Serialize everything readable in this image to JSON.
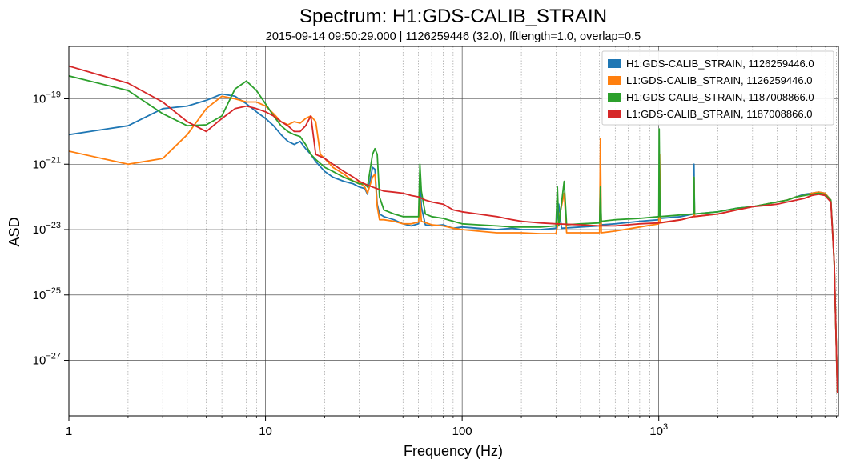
{
  "chart_data": {
    "type": "line",
    "title": "Spectrum: H1:GDS-CALIB_STRAIN",
    "subtitle": "2015-09-14 09:50:29.000 | 1126259446 (32.0), fftlength=1.0, overlap=0.5",
    "xlabel": "Frequency (Hz)",
    "ylabel": "ASD",
    "xscale": "log",
    "yscale": "log",
    "xlim": [
      1,
      8192
    ],
    "ylim": [
      2e-29,
      4e-18
    ],
    "grid": "major and minor (x), major (y)",
    "legend_position": "top-right",
    "x_ticks": [
      {
        "value": 1,
        "label": "1",
        "base": "",
        "exp": ""
      },
      {
        "value": 10,
        "label": "10",
        "base": "",
        "exp": ""
      },
      {
        "value": 100,
        "label": "100",
        "base": "",
        "exp": ""
      },
      {
        "value": 1000,
        "label": "",
        "base": "10",
        "exp": "3"
      }
    ],
    "y_ticks": [
      {
        "value": 1e-19,
        "base": "10",
        "exp": "−19"
      },
      {
        "value": 1e-21,
        "base": "10",
        "exp": "−21"
      },
      {
        "value": 1e-23,
        "base": "10",
        "exp": "−23"
      },
      {
        "value": 1e-25,
        "base": "10",
        "exp": "−25"
      },
      {
        "value": 1e-27,
        "base": "10",
        "exp": "−27"
      }
    ],
    "series": [
      {
        "name": "H1:GDS-CALIB_STRAIN, 1126259446.0",
        "color": "#1f77b4",
        "points": [
          [
            1,
            8e-21
          ],
          [
            2,
            1.5e-20
          ],
          [
            3,
            5e-20
          ],
          [
            4,
            6e-20
          ],
          [
            5,
            9e-20
          ],
          [
            6,
            1.4e-19
          ],
          [
            7,
            1.2e-19
          ],
          [
            8,
            7e-20
          ],
          [
            9,
            4e-20
          ],
          [
            10,
            2.5e-20
          ],
          [
            11,
            1.5e-20
          ],
          [
            12,
            8e-21
          ],
          [
            13,
            5e-21
          ],
          [
            14,
            4e-21
          ],
          [
            15,
            5e-21
          ],
          [
            16,
            3e-21
          ],
          [
            17,
            2e-21
          ],
          [
            18,
            1.2e-21
          ],
          [
            20,
            6e-22
          ],
          [
            22,
            4e-22
          ],
          [
            25,
            3e-22
          ],
          [
            28,
            2.5e-22
          ],
          [
            30,
            2e-22
          ],
          [
            32,
            1.8e-22
          ],
          [
            33,
            1.2e-22
          ],
          [
            35,
            8e-22
          ],
          [
            36,
            7e-22
          ],
          [
            37,
            6e-23
          ],
          [
            38,
            3e-23
          ],
          [
            40,
            2.5e-23
          ],
          [
            45,
            2e-23
          ],
          [
            50,
            1.5e-23
          ],
          [
            55,
            1.3e-23
          ],
          [
            60,
            1.5e-23
          ],
          [
            61,
            4e-22
          ],
          [
            62,
            5e-23
          ],
          [
            65,
            1.4e-23
          ],
          [
            70,
            1.3e-23
          ],
          [
            80,
            1.4e-23
          ],
          [
            90,
            1.1e-23
          ],
          [
            100,
            1.2e-23
          ],
          [
            120,
            1.1e-23
          ],
          [
            150,
            1e-23
          ],
          [
            180,
            1.1e-23
          ],
          [
            200,
            1e-23
          ],
          [
            250,
            1e-23
          ],
          [
            300,
            1.1e-23
          ],
          [
            310,
            6e-23
          ],
          [
            320,
            1.1e-23
          ],
          [
            400,
            1.2e-23
          ],
          [
            500,
            1.3e-23
          ],
          [
            505,
            4e-22
          ],
          [
            510,
            1.4e-23
          ],
          [
            600,
            1.5e-23
          ],
          [
            800,
            1.8e-23
          ],
          [
            1000,
            2e-23
          ],
          [
            1010,
            4e-22
          ],
          [
            1020,
            2.2e-23
          ],
          [
            1300,
            2.5e-23
          ],
          [
            1500,
            3e-23
          ],
          [
            1510,
            1e-21
          ],
          [
            1520,
            3e-23
          ],
          [
            2000,
            3.5e-23
          ],
          [
            2500,
            4.5e-23
          ],
          [
            3000,
            5e-23
          ],
          [
            3500,
            6e-23
          ],
          [
            4000,
            7e-23
          ],
          [
            4500,
            8e-23
          ],
          [
            5000,
            1e-22
          ],
          [
            5500,
            1.2e-22
          ],
          [
            6000,
            1.3e-22
          ],
          [
            6500,
            1.4e-22
          ],
          [
            7000,
            1.3e-22
          ],
          [
            7500,
            8e-23
          ],
          [
            7800,
            1e-24
          ],
          [
            8100,
            1e-28
          ]
        ]
      },
      {
        "name": "L1:GDS-CALIB_STRAIN, 1126259446.0",
        "color": "#ff7f0e",
        "points": [
          [
            1,
            2.5e-21
          ],
          [
            2,
            1e-21
          ],
          [
            3,
            1.5e-21
          ],
          [
            4,
            8e-21
          ],
          [
            5,
            5e-20
          ],
          [
            6,
            1.2e-19
          ],
          [
            7,
            1e-19
          ],
          [
            8,
            8e-20
          ],
          [
            9,
            8e-20
          ],
          [
            10,
            6e-20
          ],
          [
            11,
            3.5e-20
          ],
          [
            12,
            2e-20
          ],
          [
            13,
            1.6e-20
          ],
          [
            14,
            2e-20
          ],
          [
            15,
            1.8e-20
          ],
          [
            16,
            2.5e-20
          ],
          [
            17,
            3e-20
          ],
          [
            18,
            2e-20
          ],
          [
            19,
            2e-21
          ],
          [
            20,
            1.5e-21
          ],
          [
            22,
            8e-22
          ],
          [
            25,
            5e-22
          ],
          [
            28,
            3e-22
          ],
          [
            30,
            2.8e-22
          ],
          [
            32,
            2e-22
          ],
          [
            33,
            1.3e-22
          ],
          [
            35,
            4e-22
          ],
          [
            36,
            5e-22
          ],
          [
            37,
            5e-23
          ],
          [
            38,
            2e-23
          ],
          [
            40,
            2e-23
          ],
          [
            45,
            1.8e-23
          ],
          [
            50,
            1.5e-23
          ],
          [
            55,
            1.5e-23
          ],
          [
            60,
            1.7e-23
          ],
          [
            61,
            1e-22
          ],
          [
            62,
            1.8e-23
          ],
          [
            70,
            1.4e-23
          ],
          [
            80,
            1.3e-23
          ],
          [
            90,
            1.1e-23
          ],
          [
            100,
            1e-23
          ],
          [
            120,
            9e-24
          ],
          [
            150,
            8e-24
          ],
          [
            180,
            8e-24
          ],
          [
            200,
            8e-24
          ],
          [
            250,
            7.5e-24
          ],
          [
            300,
            7.5e-24
          ],
          [
            330,
            1.3e-22
          ],
          [
            340,
            8e-24
          ],
          [
            400,
            8e-24
          ],
          [
            500,
            8e-24
          ],
          [
            505,
            6e-21
          ],
          [
            510,
            8e-24
          ],
          [
            600,
            9e-24
          ],
          [
            800,
            1.2e-23
          ],
          [
            1000,
            1.5e-23
          ],
          [
            1010,
            2e-21
          ],
          [
            1020,
            1.6e-23
          ],
          [
            1300,
            2e-23
          ],
          [
            1500,
            2.5e-23
          ],
          [
            1510,
            4e-22
          ],
          [
            1520,
            2.5e-23
          ],
          [
            2000,
            3e-23
          ],
          [
            2500,
            4e-23
          ],
          [
            3000,
            5e-23
          ],
          [
            3500,
            6e-23
          ],
          [
            4000,
            7e-23
          ],
          [
            4500,
            8e-23
          ],
          [
            5000,
            1e-22
          ],
          [
            5500,
            1.1e-22
          ],
          [
            6000,
            1.3e-22
          ],
          [
            6500,
            1.4e-22
          ],
          [
            7000,
            1.3e-22
          ],
          [
            7500,
            8e-23
          ],
          [
            7800,
            1e-24
          ],
          [
            8100,
            1e-28
          ]
        ]
      },
      {
        "name": "H1:GDS-CALIB_STRAIN, 1187008866.0",
        "color": "#2ca02c",
        "points": [
          [
            1,
            5e-19
          ],
          [
            2,
            1.8e-19
          ],
          [
            3,
            3.5e-20
          ],
          [
            4,
            1.5e-20
          ],
          [
            5,
            1.6e-20
          ],
          [
            6,
            3e-20
          ],
          [
            7,
            2e-19
          ],
          [
            8,
            3.5e-19
          ],
          [
            9,
            1.8e-19
          ],
          [
            10,
            7e-20
          ],
          [
            11,
            3e-20
          ],
          [
            12,
            1.5e-20
          ],
          [
            13,
            1e-20
          ],
          [
            14,
            8e-21
          ],
          [
            15,
            7e-21
          ],
          [
            16,
            4e-21
          ],
          [
            17,
            2e-21
          ],
          [
            18,
            1.4e-21
          ],
          [
            20,
            8e-22
          ],
          [
            22,
            6e-22
          ],
          [
            25,
            4e-22
          ],
          [
            28,
            3e-22
          ],
          [
            30,
            2.5e-22
          ],
          [
            32,
            2.5e-22
          ],
          [
            33,
            2e-22
          ],
          [
            35,
            2e-21
          ],
          [
            36,
            3e-21
          ],
          [
            37,
            2e-21
          ],
          [
            38,
            1e-22
          ],
          [
            40,
            4e-23
          ],
          [
            45,
            3e-23
          ],
          [
            50,
            2.5e-23
          ],
          [
            55,
            2.5e-23
          ],
          [
            60,
            2.5e-23
          ],
          [
            61,
            1e-21
          ],
          [
            62,
            1.5e-22
          ],
          [
            65,
            3e-23
          ],
          [
            70,
            2.5e-23
          ],
          [
            80,
            2.2e-23
          ],
          [
            90,
            1.8e-23
          ],
          [
            100,
            1.5e-23
          ],
          [
            120,
            1.4e-23
          ],
          [
            150,
            1.3e-23
          ],
          [
            180,
            1.2e-23
          ],
          [
            200,
            1.2e-23
          ],
          [
            250,
            1.2e-23
          ],
          [
            300,
            1.3e-23
          ],
          [
            305,
            2e-22
          ],
          [
            310,
            1.3e-23
          ],
          [
            330,
            3e-22
          ],
          [
            340,
            1.4e-23
          ],
          [
            400,
            1.5e-23
          ],
          [
            500,
            1.6e-23
          ],
          [
            505,
            2e-22
          ],
          [
            510,
            1.8e-23
          ],
          [
            600,
            2e-23
          ],
          [
            800,
            2.2e-23
          ],
          [
            1000,
            2.5e-23
          ],
          [
            1005,
            1.2e-20
          ],
          [
            1015,
            2.5e-23
          ],
          [
            1300,
            2.8e-23
          ],
          [
            1500,
            3e-23
          ],
          [
            1510,
            4e-22
          ],
          [
            1520,
            3e-23
          ],
          [
            2000,
            3.5e-23
          ],
          [
            2500,
            4.5e-23
          ],
          [
            3000,
            5e-23
          ],
          [
            3500,
            6e-23
          ],
          [
            4000,
            7e-23
          ],
          [
            4500,
            8e-23
          ],
          [
            5000,
            1e-22
          ],
          [
            5500,
            1.1e-22
          ],
          [
            6000,
            1.2e-22
          ],
          [
            6500,
            1.3e-22
          ],
          [
            7000,
            1.2e-22
          ],
          [
            7500,
            8e-23
          ],
          [
            7800,
            1e-24
          ],
          [
            8100,
            1e-28
          ]
        ]
      },
      {
        "name": "L1:GDS-CALIB_STRAIN, 1187008866.0",
        "color": "#d62728",
        "points": [
          [
            1,
            1e-18
          ],
          [
            2,
            3e-19
          ],
          [
            3,
            8e-20
          ],
          [
            4,
            2e-20
          ],
          [
            5,
            1e-20
          ],
          [
            6,
            2.5e-20
          ],
          [
            7,
            5e-20
          ],
          [
            8,
            6e-20
          ],
          [
            9,
            5e-20
          ],
          [
            10,
            4e-20
          ],
          [
            11,
            3e-20
          ],
          [
            12,
            2e-20
          ],
          [
            13,
            1.5e-20
          ],
          [
            14,
            1e-20
          ],
          [
            15,
            1e-20
          ],
          [
            16,
            1.5e-20
          ],
          [
            17,
            3e-20
          ],
          [
            18,
            2e-21
          ],
          [
            20,
            1.5e-21
          ],
          [
            22,
            1e-21
          ],
          [
            25,
            6e-22
          ],
          [
            28,
            4e-22
          ],
          [
            30,
            3e-22
          ],
          [
            32,
            2.5e-22
          ],
          [
            35,
            2e-22
          ],
          [
            40,
            1.5e-22
          ],
          [
            45,
            1.4e-22
          ],
          [
            50,
            1.3e-22
          ],
          [
            55,
            1.1e-22
          ],
          [
            60,
            1e-22
          ],
          [
            65,
            8e-23
          ],
          [
            70,
            7e-23
          ],
          [
            80,
            6e-23
          ],
          [
            90,
            4e-23
          ],
          [
            100,
            3.5e-23
          ],
          [
            120,
            3e-23
          ],
          [
            150,
            2.5e-23
          ],
          [
            180,
            2e-23
          ],
          [
            200,
            1.8e-23
          ],
          [
            250,
            1.6e-23
          ],
          [
            300,
            1.5e-23
          ],
          [
            400,
            1.4e-23
          ],
          [
            500,
            1.3e-23
          ],
          [
            600,
            1.3e-23
          ],
          [
            800,
            1.5e-23
          ],
          [
            1000,
            1.6e-23
          ],
          [
            1300,
            2e-23
          ],
          [
            1500,
            2.5e-23
          ],
          [
            2000,
            3e-23
          ],
          [
            2500,
            4e-23
          ],
          [
            3000,
            5e-23
          ],
          [
            3500,
            5.5e-23
          ],
          [
            4000,
            6e-23
          ],
          [
            4500,
            7e-23
          ],
          [
            5000,
            8e-23
          ],
          [
            5500,
            9e-23
          ],
          [
            6000,
            1.1e-22
          ],
          [
            6500,
            1.2e-22
          ],
          [
            7000,
            1.1e-22
          ],
          [
            7500,
            7e-23
          ],
          [
            7800,
            1e-24
          ],
          [
            8100,
            1e-28
          ]
        ]
      }
    ]
  }
}
